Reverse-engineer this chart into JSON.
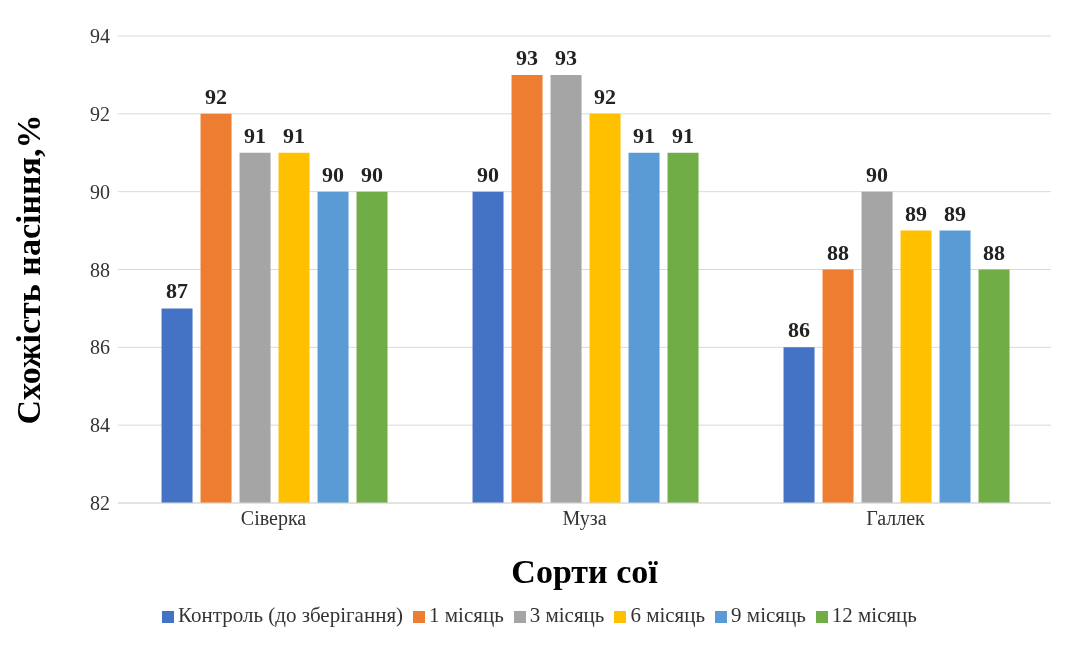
{
  "chart_data": {
    "type": "bar",
    "xlabel": "Сорти сої",
    "ylabel": "Схожість насіння,%",
    "categories": [
      "Сіверка",
      "Муза",
      "Галлек"
    ],
    "series": [
      {
        "name": "Контроль (до зберігання)",
        "color": "#4472c4",
        "values": [
          87,
          90,
          86
        ]
      },
      {
        "name": "1 місяць",
        "color": "#ed7d31",
        "values": [
          92,
          93,
          88
        ]
      },
      {
        "name": "3 місяць",
        "color": "#a5a5a5",
        "values": [
          91,
          93,
          90
        ]
      },
      {
        "name": "6 місяць",
        "color": "#ffc000",
        "values": [
          91,
          92,
          89
        ]
      },
      {
        "name": "9 місяць",
        "color": "#5b9bd5",
        "values": [
          90,
          91,
          89
        ]
      },
      {
        "name": "12 місяць",
        "color": "#70ad47",
        "values": [
          90,
          91,
          88
        ]
      }
    ],
    "ylim": [
      82,
      94
    ],
    "yticks": [
      82,
      84,
      86,
      88,
      90,
      92,
      94
    ],
    "grid": "y",
    "legend": "bottom",
    "data_labels": true
  }
}
